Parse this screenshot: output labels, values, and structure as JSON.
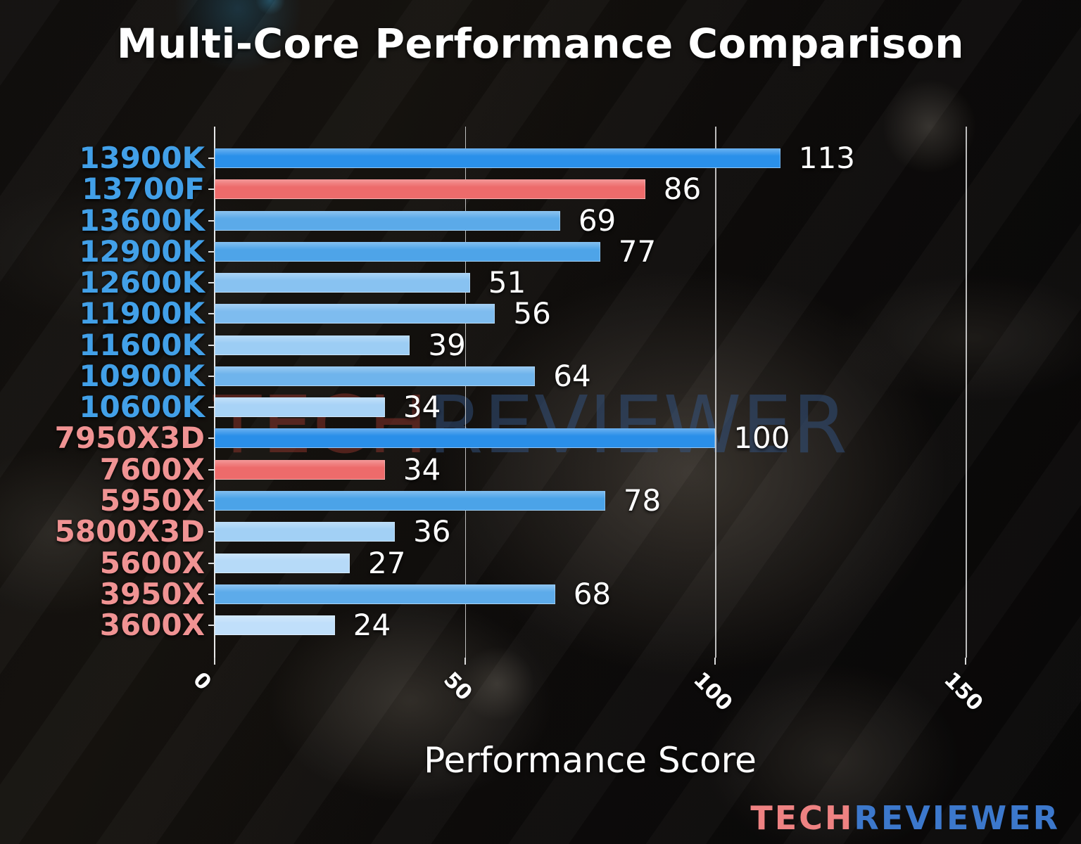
{
  "title": "Multi-Core Performance Comparison",
  "xaxis_label": "Performance Score",
  "watermark": {
    "part1": "TECH",
    "part2": "REVIEWER"
  },
  "logo": {
    "part1": "TECH",
    "part2": "REVIEWER"
  },
  "colors": {
    "intel_label": "#42a0e8",
    "amd_label": "#f09393",
    "highlight_bar": "#ed6b6b",
    "top_bar_blue": "#2a8fe9",
    "value_text": "#ffffff",
    "axis": "#e8e8e8",
    "logo_tech": "#ee8282",
    "logo_reviewer": "#3c78cc"
  },
  "chart_data": {
    "type": "bar",
    "orientation": "horizontal",
    "title": "Multi-Core Performance Comparison",
    "xlabel": "Performance Score",
    "ylabel": "",
    "xlim": [
      0,
      167
    ],
    "xticks": [
      0,
      50,
      100,
      150
    ],
    "grid": "vertical",
    "legend": "none",
    "categories": [
      "13900K",
      "13700F",
      "13600K",
      "12900K",
      "12600K",
      "11900K",
      "11600K",
      "10900K",
      "10600K",
      "7950X3D",
      "7600X",
      "5950X",
      "5800X3D",
      "5600X",
      "3950X",
      "3600X"
    ],
    "values": [
      113,
      86,
      69,
      77,
      51,
      56,
      39,
      64,
      34,
      100,
      34,
      78,
      36,
      27,
      68,
      24
    ],
    "bars": [
      {
        "label": "13900K",
        "value": 113,
        "vendor": "intel",
        "bar_color": "#2a90ea"
      },
      {
        "label": "13700F",
        "value": 86,
        "vendor": "intel",
        "bar_color": "#ed6b6b"
      },
      {
        "label": "13600K",
        "value": 69,
        "vendor": "intel",
        "bar_color": "#5baae9"
      },
      {
        "label": "12900K",
        "value": 77,
        "vendor": "intel",
        "bar_color": "#4ea4e8"
      },
      {
        "label": "12600K",
        "value": 51,
        "vendor": "intel",
        "bar_color": "#88c2f1"
      },
      {
        "label": "11900K",
        "value": 56,
        "vendor": "intel",
        "bar_color": "#7ebcef"
      },
      {
        "label": "11600K",
        "value": 39,
        "vendor": "intel",
        "bar_color": "#9ccdf4"
      },
      {
        "label": "10900K",
        "value": 64,
        "vendor": "intel",
        "bar_color": "#6fb4ec"
      },
      {
        "label": "10600K",
        "value": 34,
        "vendor": "intel",
        "bar_color": "#a8d3f6"
      },
      {
        "label": "7950X3D",
        "value": 100,
        "vendor": "amd",
        "bar_color": "#2a8fe9"
      },
      {
        "label": "7600X",
        "value": 34,
        "vendor": "amd",
        "bar_color": "#ed6b6b"
      },
      {
        "label": "5950X",
        "value": 78,
        "vendor": "amd",
        "bar_color": "#4ba3e8"
      },
      {
        "label": "5800X3D",
        "value": 36,
        "vendor": "amd",
        "bar_color": "#a2d0f5"
      },
      {
        "label": "5600X",
        "value": 27,
        "vendor": "amd",
        "bar_color": "#b6daf8"
      },
      {
        "label": "3950X",
        "value": 68,
        "vendor": "amd",
        "bar_color": "#5dabea"
      },
      {
        "label": "3600X",
        "value": 24,
        "vendor": "amd",
        "bar_color": "#c0dffa"
      }
    ]
  }
}
